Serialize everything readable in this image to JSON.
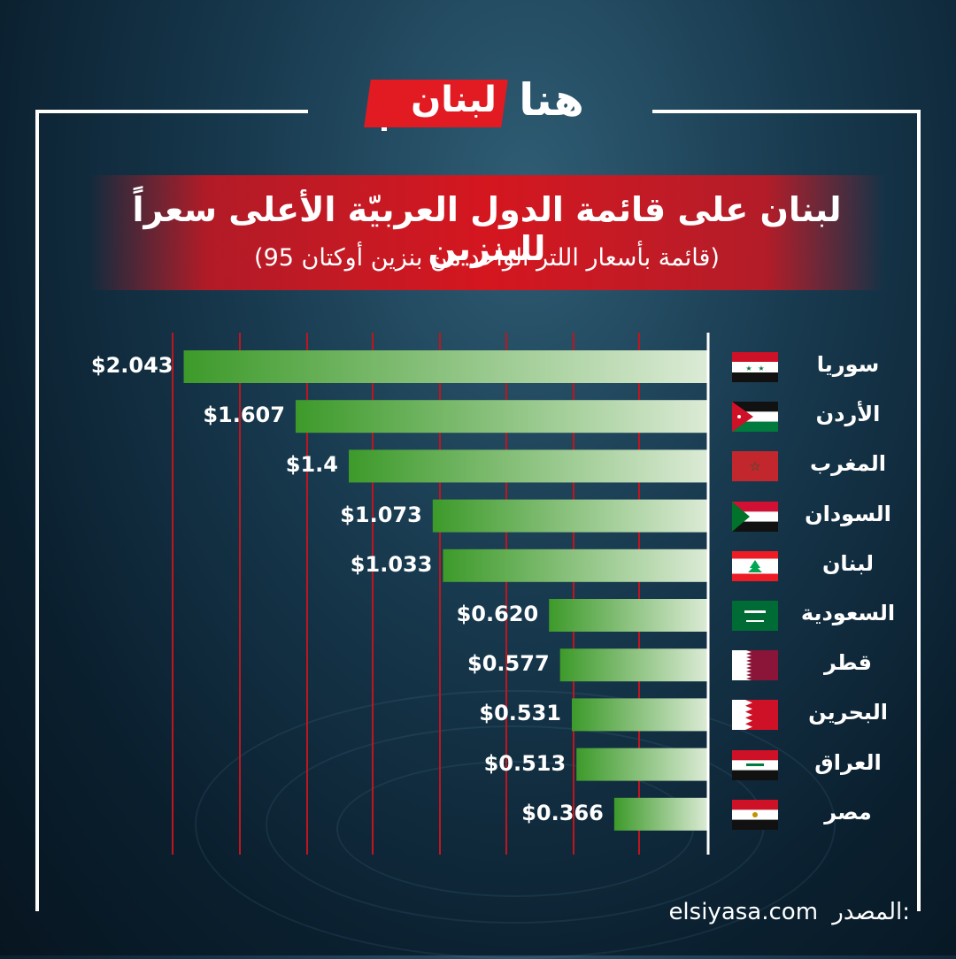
{
  "brand": {
    "logo_red": "لبنان",
    "logo_white": "هنا"
  },
  "header": {
    "title": "لبنان على قائمة الدول العربيّة الأعلى سعراً للبنزين",
    "subtitle": "(قائمة بأسعار اللتر الواحد من بنزين أوكتان 95)"
  },
  "colors": {
    "accent_red": "#d4161f",
    "bar_dark": "#3d9a2a",
    "bar_light": "#dcebd6",
    "grid_red": "#c0151e"
  },
  "chart_data": {
    "type": "bar",
    "orientation": "horizontal",
    "categories": [
      "سوريا",
      "الأردن",
      "المغرب",
      "السودان",
      "لبنان",
      "السعودية",
      "قطر",
      "البحرين",
      "العراق",
      "مصر"
    ],
    "values": [
      2.043,
      1.607,
      1.4,
      1.073,
      1.033,
      0.62,
      0.577,
      0.531,
      0.513,
      0.366
    ],
    "value_labels": [
      "$2.043",
      "$1.607",
      "$1.4",
      "$1.073",
      "$1.033",
      "$0.620",
      "$0.577",
      "$0.531",
      "$0.513",
      "$0.366"
    ],
    "flags": [
      "syria-flag",
      "jordan-flag",
      "morocco-flag",
      "sudan-flag",
      "lebanon-flag",
      "saudi-arabia-flag",
      "qatar-flag",
      "bahrain-flag",
      "iraq-flag",
      "egypt-flag"
    ],
    "grid": true,
    "xlim": [
      0,
      2.09
    ]
  },
  "footer": {
    "source_label": "المصدر:",
    "source_value": "elsiyasa.com"
  }
}
